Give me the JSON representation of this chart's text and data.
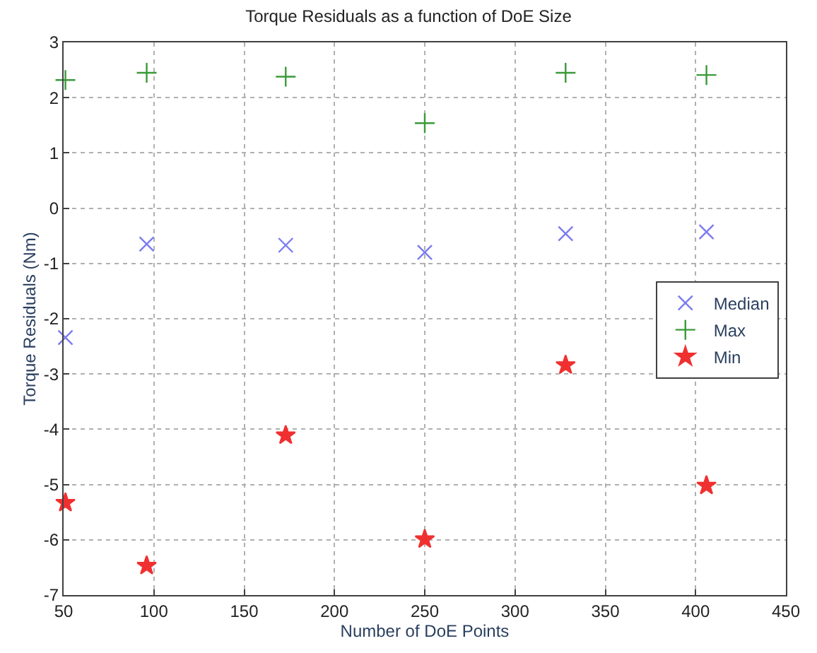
{
  "chart_data": {
    "type": "scatter",
    "title": "Torque Residuals as a function of DoE Size",
    "xlabel": "Number of DoE Points",
    "ylabel": "Torque Residuals (Nm)",
    "x": [
      51,
      96,
      173,
      250,
      328,
      406
    ],
    "series": [
      {
        "name": "Median",
        "color": "#7b7bf0",
        "marker": "x",
        "values": [
          -2.34,
          -0.65,
          -0.67,
          -0.8,
          -0.46,
          -0.43
        ]
      },
      {
        "name": "Max",
        "color": "#3a9a3a",
        "marker": "cross",
        "values": [
          2.32,
          2.45,
          2.38,
          1.54,
          2.45,
          2.41
        ]
      },
      {
        "name": "Min",
        "color": "#f03030",
        "marker": "star",
        "values": [
          -5.33,
          -6.47,
          -4.11,
          -5.99,
          -2.84,
          -5.02
        ]
      }
    ],
    "xlim": [
      50,
      450
    ],
    "xticks": [
      50,
      100,
      150,
      200,
      250,
      300,
      350,
      400,
      450
    ],
    "ylim": [
      -7,
      3
    ],
    "yticks": [
      -7,
      -6,
      -5,
      -4,
      -3,
      -2,
      -1,
      0,
      1,
      2,
      3
    ],
    "grid": true,
    "legend": "right"
  }
}
